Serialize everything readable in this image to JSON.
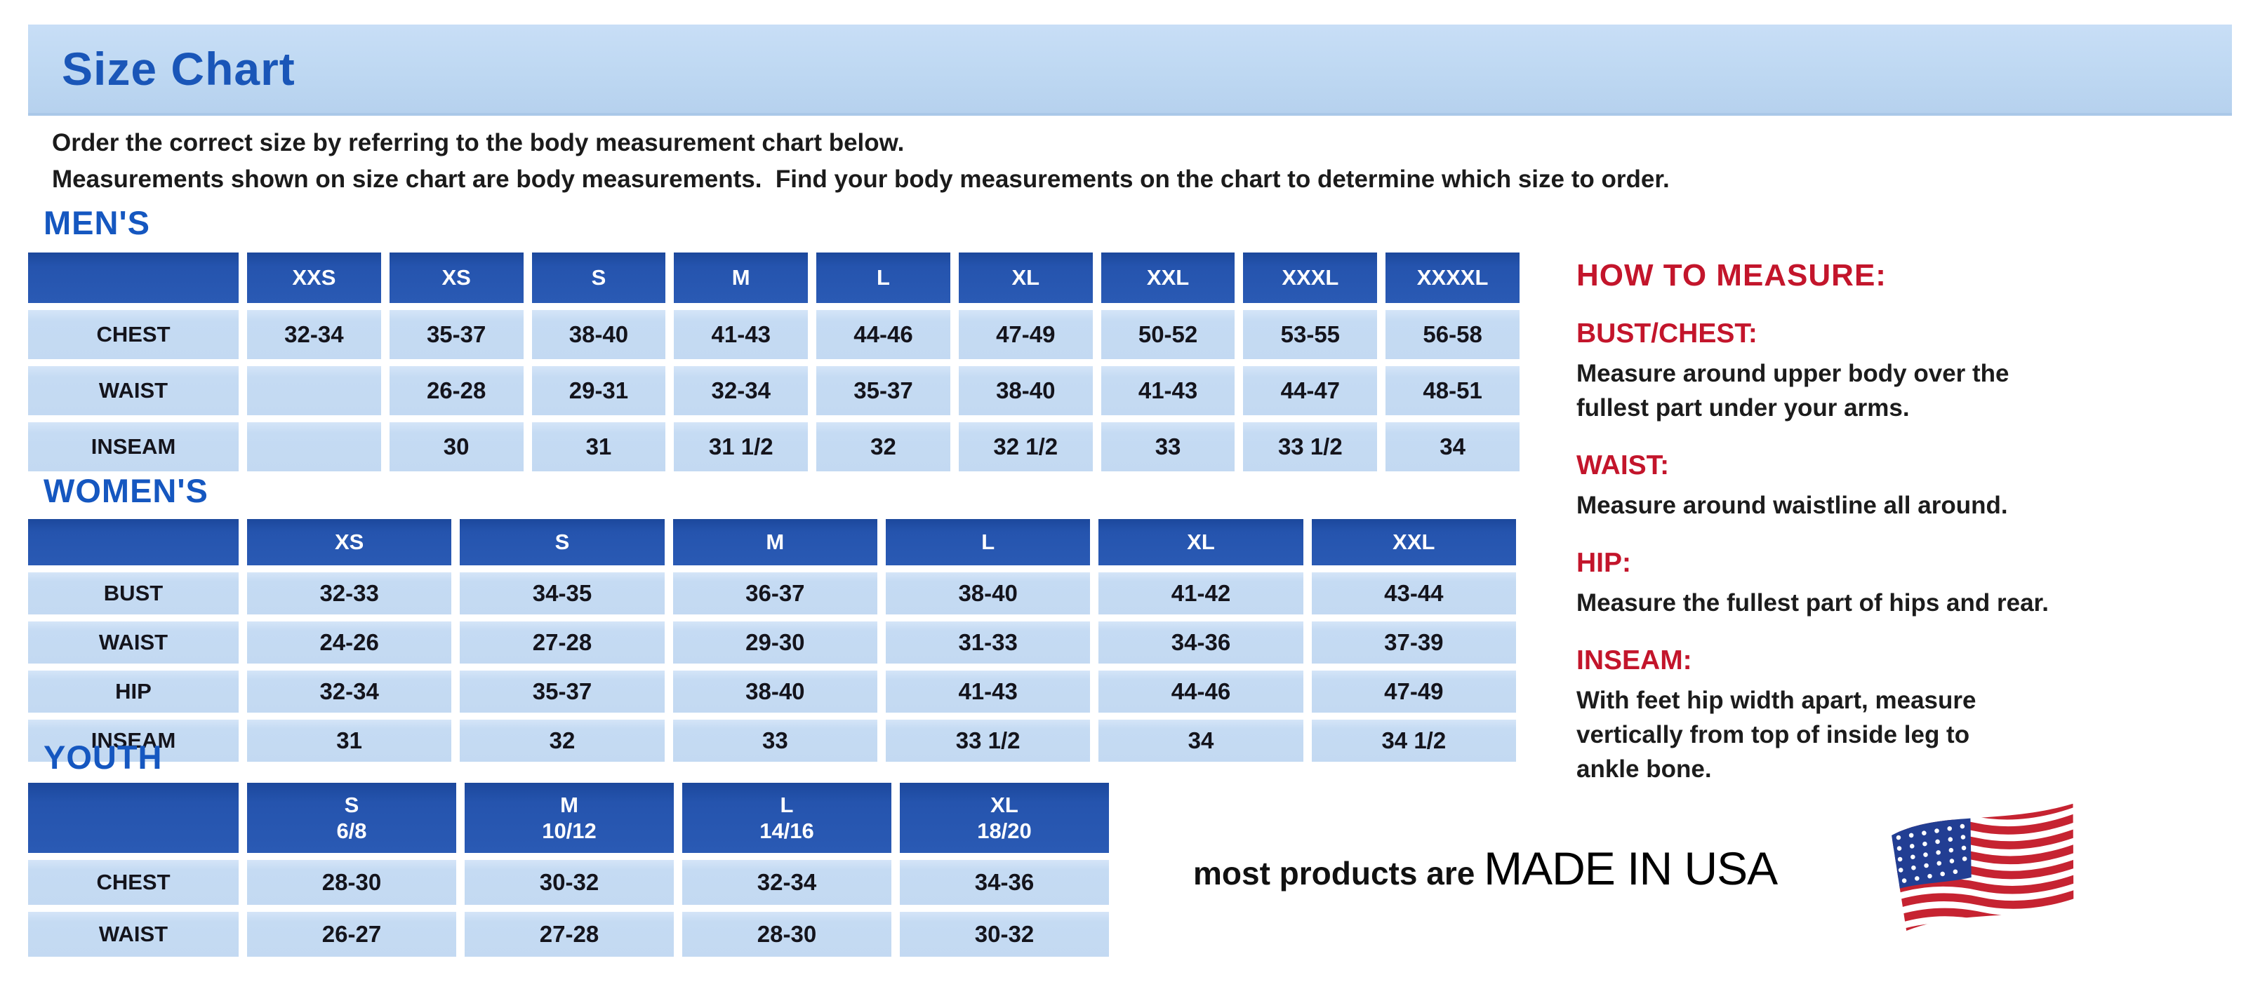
{
  "page": {
    "title": "Size Chart",
    "intro_line1": "Order the correct size by referring to the body measurement chart below.",
    "intro_line2": "Measurements shown on size chart are body measurements.  Find your body measurements on the chart to determine which size to order."
  },
  "colors": {
    "banner_bg": "#BED8F2",
    "title_blue": "#1A56B8",
    "section_heading_blue": "#1557C0",
    "table_header_blue": "#2554AE",
    "table_cell_blue": "#C3D9F2",
    "measure_red": "#C3152B",
    "body_text": "#1B1B1B"
  },
  "tables": {
    "mens": {
      "heading": "MEN'S",
      "columns": [
        "XXS",
        "XS",
        "S",
        "M",
        "L",
        "XL",
        "XXL",
        "XXXL",
        "XXXXL"
      ],
      "rows": [
        {
          "label": "CHEST",
          "values": [
            "32-34",
            "35-37",
            "38-40",
            "41-43",
            "44-46",
            "47-49",
            "50-52",
            "53-55",
            "56-58"
          ]
        },
        {
          "label": "WAIST",
          "values": [
            "",
            "26-28",
            "29-31",
            "32-34",
            "35-37",
            "38-40",
            "41-43",
            "44-47",
            "48-51"
          ]
        },
        {
          "label": "INSEAM",
          "values": [
            "",
            "30",
            "31",
            "31 1/2",
            "32",
            "32 1/2",
            "33",
            "33 1/2",
            "34"
          ]
        }
      ]
    },
    "womens": {
      "heading": "WOMEN'S",
      "columns": [
        "XS",
        "S",
        "M",
        "L",
        "XL",
        "XXL"
      ],
      "rows": [
        {
          "label": "BUST",
          "values": [
            "32-33",
            "34-35",
            "36-37",
            "38-40",
            "41-42",
            "43-44"
          ]
        },
        {
          "label": "WAIST",
          "values": [
            "24-26",
            "27-28",
            "29-30",
            "31-33",
            "34-36",
            "37-39"
          ]
        },
        {
          "label": "HIP",
          "values": [
            "32-34",
            "35-37",
            "38-40",
            "41-43",
            "44-46",
            "47-49"
          ]
        },
        {
          "label": "INSEAM",
          "values": [
            "31",
            "32",
            "33",
            "33 1/2",
            "34",
            "34 1/2"
          ]
        }
      ]
    },
    "youth": {
      "heading": "YOUTH",
      "columns": [
        "S\n6/8",
        "M\n10/12",
        "L\n14/16",
        "XL\n18/20"
      ],
      "rows": [
        {
          "label": "CHEST",
          "values": [
            "28-30",
            "30-32",
            "32-34",
            "34-36"
          ]
        },
        {
          "label": "WAIST",
          "values": [
            "26-27",
            "27-28",
            "28-30",
            "30-32"
          ]
        }
      ]
    }
  },
  "how_to_measure": {
    "heading": "HOW TO MEASURE:",
    "items": [
      {
        "label": "BUST/CHEST:",
        "text": "Measure around upper body over the\nfullest part under your arms."
      },
      {
        "label": "WAIST:",
        "text": "Measure around waistline all around."
      },
      {
        "label": "HIP:",
        "text": "Measure the fullest part of hips and rear."
      },
      {
        "label": "INSEAM:",
        "text": "With feet hip width apart, measure\nvertically from top of inside leg to\nankle bone."
      }
    ]
  },
  "footer": {
    "prefix": "most products are ",
    "emphasis": "MADE IN USA",
    "flag_icon": "us-flag-icon"
  }
}
